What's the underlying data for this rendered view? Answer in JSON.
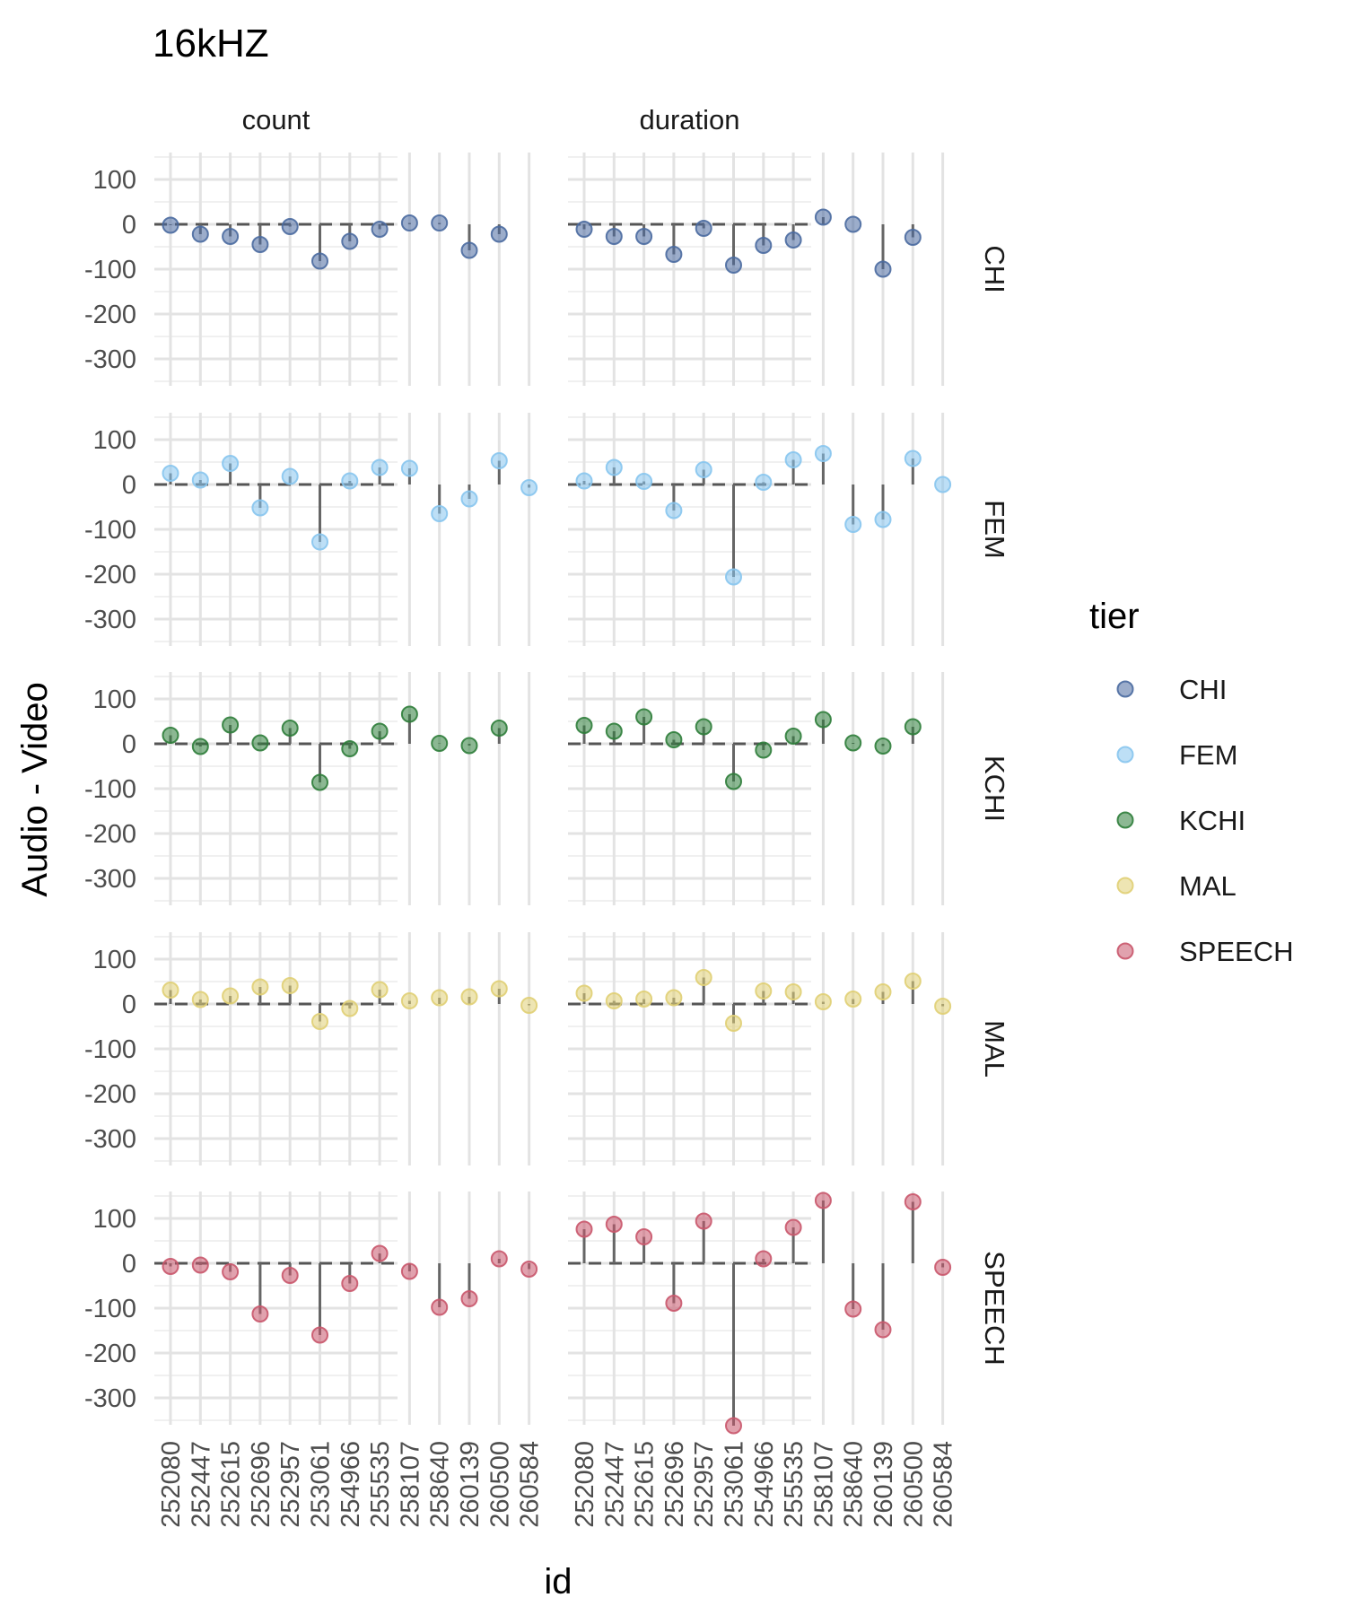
{
  "chart_data": {
    "type": "scatter",
    "title": "16kHZ",
    "xlabel": "id",
    "ylabel": "Audio - Video",
    "facet_columns": [
      "count",
      "duration"
    ],
    "facet_rows": [
      "CHI",
      "FEM",
      "KCHI",
      "MAL",
      "SPEECH"
    ],
    "categories": [
      "252080",
      "252447",
      "252615",
      "252696",
      "252957",
      "253061",
      "254966",
      "255535",
      "258107",
      "258640",
      "260139",
      "260500",
      "260584"
    ],
    "y_ticks": [
      100,
      0,
      -100,
      -200,
      -300
    ],
    "y_tick_labels": [
      "100",
      "0",
      "-100",
      "-200",
      "-300"
    ],
    "ylim": [
      -360,
      160
    ],
    "grid": true,
    "baseline": 0,
    "legend": {
      "title": "tier",
      "position": "right",
      "entries": [
        {
          "name": "CHI",
          "color": "#4a6aa0"
        },
        {
          "name": "FEM",
          "color": "#87c5ee"
        },
        {
          "name": "KCHI",
          "color": "#2e7d3a"
        },
        {
          "name": "MAL",
          "color": "#e0cf74"
        },
        {
          "name": "SPEECH",
          "color": "#c9566c"
        }
      ]
    },
    "series": [
      {
        "name": "CHI",
        "color": "#4a6aa0",
        "panels": {
          "count": [
            -2,
            -22,
            -27,
            -45,
            -5,
            -82,
            -38,
            -11,
            3,
            3,
            -58,
            -22,
            null
          ],
          "duration": [
            -11,
            -27,
            -27,
            -67,
            -9,
            -91,
            -47,
            -35,
            16,
            0,
            -100,
            -29,
            null
          ]
        }
      },
      {
        "name": "FEM",
        "color": "#87c5ee",
        "panels": {
          "count": [
            25,
            10,
            47,
            -52,
            18,
            -128,
            8,
            38,
            36,
            -65,
            -32,
            53,
            -7
          ],
          "duration": [
            8,
            38,
            7,
            -58,
            33,
            -206,
            5,
            55,
            69,
            -89,
            -78,
            58,
            0
          ]
        }
      },
      {
        "name": "KCHI",
        "color": "#2e7d3a",
        "panels": {
          "count": [
            19,
            -6,
            42,
            2,
            35,
            -86,
            -11,
            28,
            66,
            1,
            -4,
            35,
            null
          ],
          "duration": [
            41,
            28,
            60,
            9,
            38,
            -84,
            -14,
            17,
            54,
            2,
            -5,
            38,
            null
          ]
        }
      },
      {
        "name": "MAL",
        "color": "#e0cf74",
        "panels": {
          "count": [
            31,
            10,
            18,
            38,
            41,
            -39,
            -10,
            32,
            7,
            14,
            16,
            34,
            -3
          ],
          "duration": [
            24,
            7,
            11,
            14,
            59,
            -43,
            29,
            27,
            5,
            11,
            27,
            51,
            -5
          ]
        }
      },
      {
        "name": "SPEECH",
        "color": "#c9566c",
        "panels": {
          "count": [
            -7,
            -4,
            -19,
            -113,
            -27,
            -160,
            -45,
            22,
            -18,
            -98,
            -79,
            10,
            -13
          ],
          "duration": [
            76,
            87,
            59,
            -89,
            94,
            -362,
            10,
            80,
            140,
            -102,
            -148,
            137,
            -9
          ]
        }
      }
    ]
  }
}
